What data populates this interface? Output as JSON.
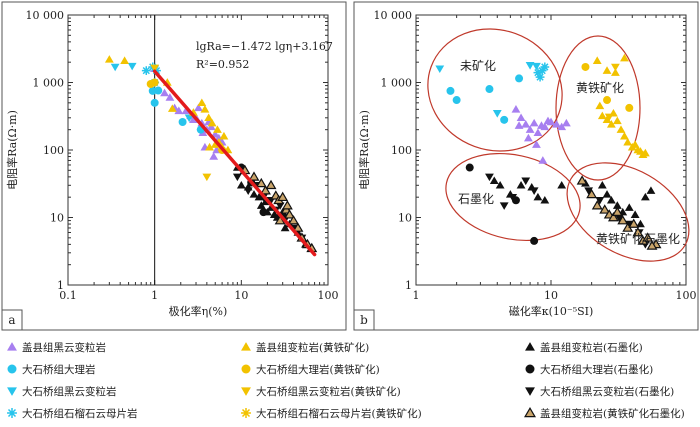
{
  "chart_data": [
    {
      "panel": "a",
      "type": "scatter",
      "xlabel": "极化率η(%)",
      "ylabel": "电阻率Ra(Ω·m)",
      "xscale": "log",
      "yscale": "log",
      "xlim": [
        0.1,
        100
      ],
      "ylim": [
        1,
        10000
      ],
      "xticks": [
        "0.1",
        "1",
        "10",
        "100"
      ],
      "yticks": [
        "1",
        "10",
        "100",
        "1 000",
        "10 000"
      ],
      "grid": false,
      "equation": "lgRa=−1.472 lgη+3.167",
      "r2": "R²=0.952",
      "regression": {
        "slope": -1.472,
        "intercept": 3.167,
        "x_range": [
          1.0,
          70
        ]
      },
      "vertical_reference_x": 1,
      "series": [
        {
          "key": "A",
          "points": [
            [
              1.0,
              1600
            ],
            [
              1.3,
              700
            ],
            [
              1.5,
              600
            ],
            [
              1.7,
              420
            ],
            [
              1.9,
              380
            ],
            [
              2.3,
              380
            ],
            [
              2.6,
              320
            ],
            [
              3.0,
              300
            ],
            [
              3.2,
              420
            ],
            [
              3.5,
              250
            ],
            [
              4.0,
              200
            ],
            [
              4.2,
              260
            ],
            [
              4.5,
              220
            ],
            [
              5.0,
              170
            ],
            [
              5.5,
              150
            ],
            [
              6.0,
              130
            ],
            [
              4.8,
              80
            ],
            [
              3.8,
              110
            ],
            [
              5.2,
              100
            ],
            [
              2.8,
              280
            ],
            [
              3.6,
              180
            ]
          ]
        },
        {
          "key": "B",
          "points": [
            [
              0.95,
              750
            ],
            [
              1.0,
              500
            ],
            [
              1.1,
              760
            ],
            [
              2.1,
              260
            ],
            [
              3.4,
              200
            ]
          ]
        },
        {
          "key": "C",
          "points": [
            [
              0.35,
              1700
            ],
            [
              0.55,
              1750
            ],
            [
              1.0,
              1600
            ],
            [
              2.5,
              300
            ]
          ]
        },
        {
          "key": "D",
          "points": [
            [
              0.8,
              1500
            ],
            [
              0.95,
              1700
            ],
            [
              1.0,
              1000
            ],
            [
              1.05,
              1500
            ]
          ]
        },
        {
          "key": "E",
          "points": [
            [
              0.3,
              2200
            ],
            [
              0.45,
              2100
            ],
            [
              1.4,
              1000
            ],
            [
              1.6,
              410
            ],
            [
              2.8,
              360
            ],
            [
              3.5,
              500
            ],
            [
              3.8,
              400
            ],
            [
              4.2,
              300
            ],
            [
              4.6,
              250
            ],
            [
              5.0,
              120
            ],
            [
              5.5,
              130
            ],
            [
              6.0,
              110
            ],
            [
              7.0,
              100
            ],
            [
              6.3,
              160
            ],
            [
              5.3,
              200
            ],
            [
              4.3,
              110
            ]
          ]
        },
        {
          "key": "F",
          "points": [
            [
              0.9,
              950
            ],
            [
              1.0,
              1000
            ],
            [
              6.0,
              100
            ]
          ]
        },
        {
          "key": "G",
          "points": [
            [
              1.0,
              1650
            ],
            [
              4.0,
              40
            ]
          ]
        },
        {
          "key": "H",
          "points": [
            [
              9,
              55
            ],
            [
              10,
              30
            ],
            [
              12,
              28
            ],
            [
              14,
              22
            ],
            [
              16,
              20
            ],
            [
              17,
              15
            ],
            [
              19,
              17
            ],
            [
              20,
              12
            ],
            [
              22,
              14
            ],
            [
              24,
              11
            ],
            [
              26,
              10
            ],
            [
              28,
              9
            ],
            [
              30,
              12
            ],
            [
              32,
              7
            ],
            [
              36,
              8
            ],
            [
              45,
              6
            ],
            [
              55,
              4
            ]
          ]
        },
        {
          "key": "I",
          "points": [
            [
              10,
              55
            ],
            [
              13,
              33
            ],
            [
              18,
              12
            ]
          ]
        },
        {
          "key": "J",
          "points": [
            [
              9,
              40
            ],
            [
              12,
              25
            ],
            [
              15,
              30
            ],
            [
              18,
              20
            ],
            [
              22,
              18
            ],
            [
              25,
              13
            ],
            [
              28,
              15
            ],
            [
              33,
              10
            ],
            [
              40,
              7
            ],
            [
              50,
              5
            ]
          ]
        },
        {
          "key": "K",
          "points": [
            [
              11,
              50
            ],
            [
              14,
              40
            ],
            [
              17,
              32
            ],
            [
              19,
              25
            ],
            [
              22,
              30
            ],
            [
              25,
              21
            ],
            [
              27,
              18
            ],
            [
              30,
              20
            ],
            [
              33,
              13
            ],
            [
              36,
              11
            ],
            [
              40,
              9
            ],
            [
              45,
              7
            ],
            [
              50,
              5
            ],
            [
              58,
              4
            ],
            [
              65,
              3.5
            ],
            [
              28,
              9
            ],
            [
              34,
              15
            ]
          ]
        }
      ]
    },
    {
      "panel": "b",
      "type": "scatter",
      "xlabel": "磁化率κ(10⁻⁵SI)",
      "ylabel": "电阻率Ra(Ω·m)",
      "xscale": "log",
      "yscale": "log",
      "xlim": [
        1,
        100
      ],
      "ylim": [
        1,
        10000
      ],
      "xticks": [
        "1",
        "10",
        "100"
      ],
      "yticks": [
        "1",
        "10",
        "100",
        "1 000",
        "10 000"
      ],
      "grid": false,
      "groups": [
        "未矿化",
        "黄铁矿化",
        "石墨化",
        "黄铁矿化石墨化"
      ],
      "series": [
        {
          "key": "A",
          "points": [
            [
              5.5,
              400
            ],
            [
              6.0,
              300
            ],
            [
              6.5,
              240
            ],
            [
              7.0,
              200
            ],
            [
              7.5,
              250
            ],
            [
              8.0,
              180
            ],
            [
              8.5,
              230
            ],
            [
              9.0,
              220
            ],
            [
              9.5,
              270
            ],
            [
              10,
              260
            ],
            [
              11,
              240
            ],
            [
              12,
              220
            ],
            [
              13,
              250
            ],
            [
              6.8,
              150
            ],
            [
              7.8,
              120
            ],
            [
              8.7,
              70
            ],
            [
              5.8,
              230
            ]
          ]
        },
        {
          "key": "B",
          "points": [
            [
              1.8,
              750
            ],
            [
              2.0,
              550
            ],
            [
              3.5,
              800
            ],
            [
              4.5,
              280
            ],
            [
              5.8,
              1150
            ]
          ]
        },
        {
          "key": "C",
          "points": [
            [
              1.5,
              1600
            ],
            [
              4.0,
              350
            ],
            [
              7.0,
              1800
            ],
            [
              7.8,
              1750
            ]
          ]
        },
        {
          "key": "D",
          "points": [
            [
              8.0,
              1400
            ],
            [
              8.3,
              1200
            ],
            [
              8.6,
              1500
            ],
            [
              9.0,
              1700
            ]
          ]
        },
        {
          "key": "E",
          "points": [
            [
              22,
              2100
            ],
            [
              26,
              1500
            ],
            [
              30,
              1400
            ],
            [
              35,
              2300
            ],
            [
              23,
              450
            ],
            [
              24,
              320
            ],
            [
              26,
              280
            ],
            [
              28,
              240
            ],
            [
              29,
              350
            ],
            [
              31,
              270
            ],
            [
              33,
              200
            ],
            [
              35,
              160
            ],
            [
              37,
              130
            ],
            [
              40,
              110
            ],
            [
              42,
              120
            ],
            [
              44,
              100
            ],
            [
              46,
              95
            ],
            [
              48,
              85
            ],
            [
              50,
              90
            ]
          ]
        },
        {
          "key": "F",
          "points": [
            [
              18,
              1700
            ],
            [
              26,
              550
            ],
            [
              38,
              420
            ]
          ]
        },
        {
          "key": "G",
          "points": [
            [
              30,
              1700
            ],
            [
              27,
              310
            ]
          ]
        },
        {
          "key": "H",
          "points": [
            [
              3.8,
              35
            ],
            [
              4.2,
              30
            ],
            [
              5.0,
              22
            ],
            [
              6.0,
              30
            ],
            [
              7.2,
              28
            ],
            [
              8.0,
              20
            ],
            [
              9.0,
              18
            ],
            [
              12,
              30
            ],
            [
              18,
              32
            ],
            [
              24,
              30
            ],
            [
              26,
              22
            ],
            [
              28,
              18
            ],
            [
              31,
              15
            ],
            [
              34,
              12
            ],
            [
              38,
              14
            ],
            [
              42,
              11
            ],
            [
              46,
              8
            ],
            [
              50,
              20
            ],
            [
              55,
              25
            ]
          ]
        },
        {
          "key": "I",
          "points": [
            [
              2.5,
              55
            ],
            [
              5.5,
              18
            ],
            [
              7.5,
              4.5
            ]
          ]
        },
        {
          "key": "J",
          "points": [
            [
              3.5,
              40
            ],
            [
              4.5,
              15
            ],
            [
              5.2,
              20
            ],
            [
              6.5,
              35
            ],
            [
              7.5,
              25
            ],
            [
              19,
              25
            ],
            [
              23,
              18
            ],
            [
              32,
              10
            ],
            [
              38,
              8
            ],
            [
              45,
              6
            ],
            [
              50,
              4
            ]
          ]
        },
        {
          "key": "K",
          "points": [
            [
              17,
              35
            ],
            [
              20,
              22
            ],
            [
              22,
              15
            ],
            [
              25,
              13
            ],
            [
              27,
              11
            ],
            [
              29,
              10
            ],
            [
              31,
              12
            ],
            [
              34,
              9
            ],
            [
              37,
              7
            ],
            [
              41,
              8
            ],
            [
              44,
              6
            ],
            [
              48,
              4.5
            ],
            [
              52,
              5
            ],
            [
              60,
              4
            ],
            [
              56,
              3.8
            ]
          ]
        }
      ]
    }
  ],
  "legend": [
    {
      "key": "A",
      "label": "盖县组黑云变粒岩",
      "marker": "triangle-up",
      "color": "#a77ff0",
      "edge": "none"
    },
    {
      "key": "E",
      "label": "盖县组变粒岩(黄铁矿化)",
      "marker": "triangle-up",
      "color": "#f2c200",
      "edge": "none"
    },
    {
      "key": "H",
      "label": "盖县组变粒岩(石墨化)",
      "marker": "triangle-up",
      "color": "#111111",
      "edge": "none"
    },
    {
      "key": "B",
      "label": "大石桥组大理岩",
      "marker": "circle",
      "color": "#27c4ec",
      "edge": "none"
    },
    {
      "key": "F",
      "label": "大石桥组大理岩(黄铁矿化)",
      "marker": "circle",
      "color": "#f2c200",
      "edge": "none"
    },
    {
      "key": "I",
      "label": "大石桥组大理岩(石墨化)",
      "marker": "circle",
      "color": "#111111",
      "edge": "none"
    },
    {
      "key": "C",
      "label": "大石桥组黑云变粒岩",
      "marker": "triangle-down",
      "color": "#27c4ec",
      "edge": "none"
    },
    {
      "key": "G",
      "label": "大石桥组黑云变粒岩(黄铁矿化)",
      "marker": "triangle-down",
      "color": "#f2c200",
      "edge": "none"
    },
    {
      "key": "J",
      "label": "大石桥组黑云变粒岩(石墨化)",
      "marker": "triangle-down",
      "color": "#111111",
      "edge": "none"
    },
    {
      "key": "D",
      "label": "大石桥组石榴石云母片岩",
      "marker": "asterisk",
      "color": "#27c4ec",
      "edge": "none"
    },
    {
      "key": "G2",
      "label": "大石桥组石榴石云母片岩(黄铁矿化)",
      "marker": "asterisk",
      "color": "#f2c200",
      "edge": "none"
    },
    {
      "key": "K",
      "label": "盖县组变粒岩(黄铁矿化石墨化)",
      "marker": "triangle-up",
      "color": "#c9a46a",
      "edge": "#111111"
    }
  ],
  "colors": {
    "regression_line": "#e31a1c",
    "ellipse": "#c0392b",
    "axis": "#333333",
    "reference_line": "#111111"
  }
}
